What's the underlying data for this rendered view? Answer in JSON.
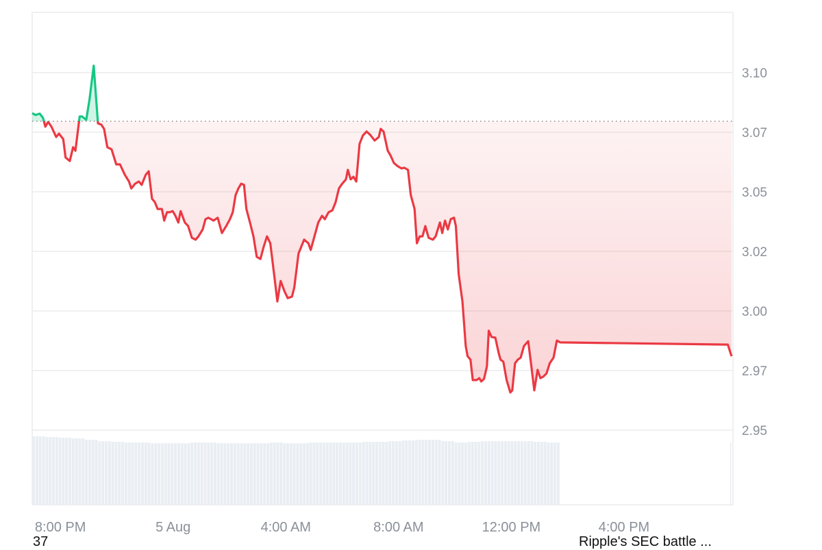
{
  "chart_data": {
    "type": "area",
    "title": "",
    "xlabel": "",
    "ylabel": "",
    "ylim": [
      2.95,
      3.11
    ],
    "y_ticks": [
      {
        "value": 3.1,
        "label": "3.10"
      },
      {
        "value": 3.075,
        "label": "3.07"
      },
      {
        "value": 3.05,
        "label": "3.05"
      },
      {
        "value": 3.025,
        "label": "3.02"
      },
      {
        "value": 3.0,
        "label": "3.00"
      },
      {
        "value": 2.975,
        "label": "2.97"
      },
      {
        "value": 2.95,
        "label": "2.95"
      }
    ],
    "x_ticks": [
      {
        "time": "4 Aug 20:00",
        "label": "8:00 PM"
      },
      {
        "time": "5 Aug 00:00",
        "label": "5 Aug"
      },
      {
        "time": "5 Aug 04:00",
        "label": "4:00 AM"
      },
      {
        "time": "5 Aug 08:00",
        "label": "8:00 AM"
      },
      {
        "time": "5 Aug 12:00",
        "label": "12:00 PM"
      },
      {
        "time": "5 Aug 16:00",
        "label": "4:00 PM"
      }
    ],
    "xlim": [
      "4 Aug 19:00",
      "5 Aug 19:49"
    ],
    "grid": true,
    "reference_price": 3.0796,
    "colors": {
      "up": "#16c784",
      "down": "#ea3943",
      "grid": "#ececec",
      "volume": "#e9eef3",
      "reference": "#888888"
    },
    "series": [
      {
        "points": [
          [
            "4 Aug 19:00",
            3.083
          ],
          [
            "4 Aug 19:07",
            3.0822
          ],
          [
            "4 Aug 19:16",
            3.0828
          ],
          [
            "4 Aug 19:23",
            3.081
          ],
          [
            "4 Aug 19:28",
            3.0773
          ],
          [
            "4 Aug 19:34",
            3.0793
          ],
          [
            "4 Aug 19:41",
            3.0773
          ],
          [
            "4 Aug 19:51",
            3.073
          ],
          [
            "4 Aug 19:57",
            3.0744
          ],
          [
            "4 Aug 20:06",
            3.0721
          ],
          [
            "4 Aug 20:11",
            3.0644
          ],
          [
            "4 Aug 20:20",
            3.0629
          ],
          [
            "4 Aug 20:27",
            3.0687
          ],
          [
            "4 Aug 20:32",
            3.0672
          ],
          [
            "4 Aug 20:41",
            3.0816
          ],
          [
            "4 Aug 20:46",
            3.0816
          ],
          [
            "4 Aug 20:55",
            3.0802
          ],
          [
            "4 Aug 21:02",
            3.0888
          ],
          [
            "4 Aug 21:11",
            3.1029
          ],
          [
            "4 Aug 21:20",
            3.0787
          ],
          [
            "4 Aug 21:27",
            3.0782
          ],
          [
            "4 Aug 21:33",
            3.0764
          ],
          [
            "4 Aug 21:40",
            3.0687
          ],
          [
            "4 Aug 21:49",
            3.0678
          ],
          [
            "4 Aug 21:59",
            3.0615
          ],
          [
            "4 Aug 22:07",
            3.0615
          ],
          [
            "4 Aug 22:17",
            3.0572
          ],
          [
            "4 Aug 22:26",
            3.0543
          ],
          [
            "4 Aug 22:31",
            3.0514
          ],
          [
            "4 Aug 22:39",
            3.0534
          ],
          [
            "4 Aug 22:47",
            3.0543
          ],
          [
            "4 Aug 22:53",
            3.0529
          ],
          [
            "4 Aug 23:02",
            3.0572
          ],
          [
            "4 Aug 23:08",
            3.0586
          ],
          [
            "4 Aug 23:15",
            3.0471
          ],
          [
            "4 Aug 23:21",
            3.0457
          ],
          [
            "4 Aug 23:27",
            3.0428
          ],
          [
            "4 Aug 23:36",
            3.0428
          ],
          [
            "4 Aug 23:41",
            3.0379
          ],
          [
            "4 Aug 23:47",
            3.0414
          ],
          [
            "4 Aug 23:53",
            3.0414
          ],
          [
            "4 Aug 23:59",
            3.0419
          ],
          [
            "5 Aug 00:05",
            3.0399
          ],
          [
            "5 Aug 00:11",
            3.0371
          ],
          [
            "5 Aug 00:16",
            3.0419
          ],
          [
            "5 Aug 00:25",
            3.0371
          ],
          [
            "5 Aug 00:32",
            3.0356
          ],
          [
            "5 Aug 00:40",
            3.0307
          ],
          [
            "5 Aug 00:48",
            3.0299
          ],
          [
            "5 Aug 00:54",
            3.0313
          ],
          [
            "5 Aug 01:03",
            3.0342
          ],
          [
            "5 Aug 01:09",
            3.0385
          ],
          [
            "5 Aug 01:15",
            3.0391
          ],
          [
            "5 Aug 01:21",
            3.0385
          ],
          [
            "5 Aug 01:26",
            3.0379
          ],
          [
            "5 Aug 01:35",
            3.0391
          ],
          [
            "5 Aug 01:44",
            3.0327
          ],
          [
            "5 Aug 01:53",
            3.0356
          ],
          [
            "5 Aug 02:01",
            3.0385
          ],
          [
            "5 Aug 02:07",
            3.0414
          ],
          [
            "5 Aug 02:13",
            3.0486
          ],
          [
            "5 Aug 02:19",
            3.0514
          ],
          [
            "5 Aug 02:25",
            3.0534
          ],
          [
            "5 Aug 02:31",
            3.0529
          ],
          [
            "5 Aug 02:36",
            3.0428
          ],
          [
            "5 Aug 02:44",
            3.0368
          ],
          [
            "5 Aug 02:51",
            3.0313
          ],
          [
            "5 Aug 02:58",
            3.0227
          ],
          [
            "5 Aug 03:06",
            3.0218
          ],
          [
            "5 Aug 03:13",
            3.027
          ],
          [
            "5 Aug 03:20",
            3.0313
          ],
          [
            "5 Aug 03:27",
            3.0284
          ],
          [
            "5 Aug 03:35",
            3.0155
          ],
          [
            "5 Aug 03:42",
            3.004
          ],
          [
            "5 Aug 03:49",
            3.0126
          ],
          [
            "5 Aug 03:57",
            3.0083
          ],
          [
            "5 Aug 04:04",
            3.0054
          ],
          [
            "5 Aug 04:13",
            3.006
          ],
          [
            "5 Aug 04:18",
            3.0098
          ],
          [
            "5 Aug 04:27",
            3.0241
          ],
          [
            "5 Aug 04:33",
            3.027
          ],
          [
            "5 Aug 04:39",
            3.0299
          ],
          [
            "5 Aug 04:48",
            3.0284
          ],
          [
            "5 Aug 04:53",
            3.0256
          ],
          [
            "5 Aug 04:59",
            3.0299
          ],
          [
            "5 Aug 05:09",
            3.0371
          ],
          [
            "5 Aug 05:17",
            3.0399
          ],
          [
            "5 Aug 05:23",
            3.0385
          ],
          [
            "5 Aug 05:31",
            3.0414
          ],
          [
            "5 Aug 05:39",
            3.0422
          ],
          [
            "5 Aug 05:46",
            3.0457
          ],
          [
            "5 Aug 05:53",
            3.0514
          ],
          [
            "5 Aug 06:00",
            3.0534
          ],
          [
            "5 Aug 06:08",
            3.0552
          ],
          [
            "5 Aug 06:12",
            3.0592
          ],
          [
            "5 Aug 06:18",
            3.0552
          ],
          [
            "5 Aug 06:24",
            3.0563
          ],
          [
            "5 Aug 06:30",
            3.0543
          ],
          [
            "5 Aug 06:37",
            3.0701
          ],
          [
            "5 Aug 06:44",
            3.0736
          ],
          [
            "5 Aug 06:52",
            3.0753
          ],
          [
            "5 Aug 07:00",
            3.0738
          ],
          [
            "5 Aug 07:09",
            3.0715
          ],
          [
            "5 Aug 07:18",
            3.073
          ],
          [
            "5 Aug 07:22",
            3.0764
          ],
          [
            "5 Aug 07:28",
            3.0753
          ],
          [
            "5 Aug 07:37",
            3.0672
          ],
          [
            "5 Aug 07:43",
            3.0652
          ],
          [
            "5 Aug 07:50",
            3.0621
          ],
          [
            "5 Aug 07:57",
            3.0609
          ],
          [
            "5 Aug 08:06",
            3.0598
          ],
          [
            "5 Aug 08:12",
            3.0601
          ],
          [
            "5 Aug 08:20",
            3.0592
          ],
          [
            "5 Aug 08:26",
            3.0486
          ],
          [
            "5 Aug 08:34",
            3.0428
          ],
          [
            "5 Aug 08:39",
            3.0284
          ],
          [
            "5 Aug 08:45",
            3.0313
          ],
          [
            "5 Aug 08:51",
            3.0313
          ],
          [
            "5 Aug 08:57",
            3.0356
          ],
          [
            "5 Aug 09:04",
            3.0307
          ],
          [
            "5 Aug 09:13",
            3.0299
          ],
          [
            "5 Aug 09:19",
            3.0313
          ],
          [
            "5 Aug 09:28",
            3.0371
          ],
          [
            "5 Aug 09:33",
            3.0327
          ],
          [
            "5 Aug 09:39",
            3.0379
          ],
          [
            "5 Aug 09:45",
            3.0342
          ],
          [
            "5 Aug 09:51",
            3.0385
          ],
          [
            "5 Aug 09:58",
            3.0391
          ],
          [
            "5 Aug 10:02",
            3.0356
          ],
          [
            "5 Aug 10:08",
            3.0155
          ],
          [
            "5 Aug 10:16",
            3.004
          ],
          [
            "5 Aug 10:23",
            2.9853
          ],
          [
            "5 Aug 10:27",
            2.981
          ],
          [
            "5 Aug 10:33",
            2.9796
          ],
          [
            "5 Aug 10:38",
            2.971
          ],
          [
            "5 Aug 10:46",
            2.971
          ],
          [
            "5 Aug 10:52",
            2.9718
          ],
          [
            "5 Aug 10:56",
            2.9704
          ],
          [
            "5 Aug 11:02",
            2.9715
          ],
          [
            "5 Aug 11:08",
            2.9767
          ],
          [
            "5 Aug 11:12",
            2.9917
          ],
          [
            "5 Aug 11:18",
            2.9891
          ],
          [
            "5 Aug 11:26",
            2.9888
          ],
          [
            "5 Aug 11:33",
            2.9825
          ],
          [
            "5 Aug 11:37",
            2.9796
          ],
          [
            "5 Aug 11:43",
            2.9787
          ],
          [
            "5 Aug 11:50",
            2.971
          ],
          [
            "5 Aug 11:58",
            2.9658
          ],
          [
            "5 Aug 12:02",
            2.9667
          ],
          [
            "5 Aug 12:08",
            2.9781
          ],
          [
            "5 Aug 12:14",
            2.9796
          ],
          [
            "5 Aug 12:20",
            2.9804
          ],
          [
            "5 Aug 12:27",
            2.9853
          ],
          [
            "5 Aug 12:36",
            2.9873
          ],
          [
            "5 Aug 12:41",
            2.9796
          ],
          [
            "5 Aug 12:49",
            2.9667
          ],
          [
            "5 Aug 12:56",
            2.9753
          ],
          [
            "5 Aug 13:02",
            2.9718
          ],
          [
            "5 Aug 13:08",
            2.9724
          ],
          [
            "5 Aug 13:15",
            2.9738
          ],
          [
            "5 Aug 13:22",
            2.9781
          ],
          [
            "5 Aug 13:30",
            2.9804
          ],
          [
            "5 Aug 13:37",
            2.9876
          ],
          [
            "5 Aug 13:44",
            2.9868
          ],
          [
            "5 Aug 19:41",
            2.9859
          ],
          [
            "5 Aug 19:49",
            2.981
          ]
        ]
      }
    ],
    "volume_relative": {
      "range": [
        "4 Aug 19:00",
        "5 Aug 13:44"
      ],
      "values": [
        0.99,
        0.98,
        0.97,
        0.96,
        0.94,
        0.92,
        0.91,
        0.9,
        0.9,
        0.89,
        0.89,
        0.89,
        0.9,
        0.9,
        0.89,
        0.89,
        0.89,
        0.89,
        0.9,
        0.89,
        0.89,
        0.9,
        0.9,
        0.9,
        0.9,
        0.91,
        0.91,
        0.92,
        0.93,
        0.94,
        0.94,
        0.92,
        0.9,
        0.91,
        0.92,
        0.92,
        0.92,
        0.92,
        0.91,
        0.9
      ],
      "last": {
        "time": "5 Aug 19:49",
        "value": 0.9
      }
    }
  },
  "footer": {
    "left_text": "37",
    "right_text": "Ripple's SEC battle ..."
  }
}
